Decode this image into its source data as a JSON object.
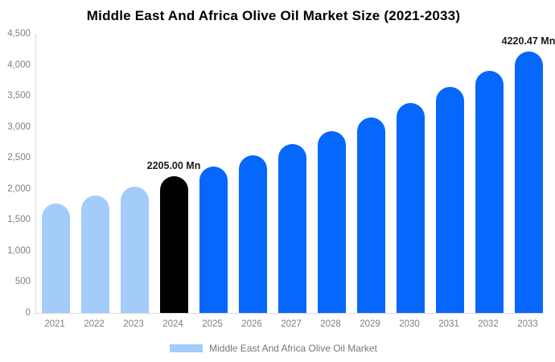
{
  "chart_data": {
    "type": "bar",
    "title": "Middle East And Africa Olive Oil Market Size (2021-2033)",
    "categories": [
      "2021",
      "2022",
      "2023",
      "2024",
      "2025",
      "2026",
      "2027",
      "2028",
      "2029",
      "2030",
      "2031",
      "2032",
      "2033"
    ],
    "values": [
      1760,
      1900,
      2030,
      2205.0,
      2360,
      2540,
      2730,
      2935,
      3155,
      3390,
      3640,
      3910,
      4220.47
    ],
    "unit": "Mn",
    "bar_colors": [
      "#A3CCFA",
      "#A3CCFA",
      "#A3CCFA",
      "#000000",
      "#0667FD",
      "#0667FD",
      "#0667FD",
      "#0667FD",
      "#0667FD",
      "#0667FD",
      "#0667FD",
      "#0667FD",
      "#0667FD"
    ],
    "annotations": [
      {
        "category": "2024",
        "index": 3,
        "text": "2205.00 Mn"
      },
      {
        "category": "2033",
        "index": 12,
        "text": "4220.47 Mn"
      }
    ],
    "xlabel": "",
    "ylabel": "",
    "ylim": [
      0,
      4500
    ],
    "ytick_labels": [
      "0",
      "500",
      "1,000",
      "1,500",
      "2,000",
      "2,500",
      "3,000",
      "3,500",
      "4,000",
      "4,500"
    ],
    "grid": false,
    "legend": {
      "position": "bottom",
      "entries": [
        {
          "label": "Middle East And Africa Olive Oil Market",
          "color": "#A3CCFA"
        }
      ]
    }
  },
  "colors": {
    "title_text": "#000000",
    "tick_text": "#808080",
    "annotation_text": "#1A1A1A",
    "legend_text": "#777777",
    "axis_line": "#D9D9D9",
    "background": "#FFFFFF"
  }
}
